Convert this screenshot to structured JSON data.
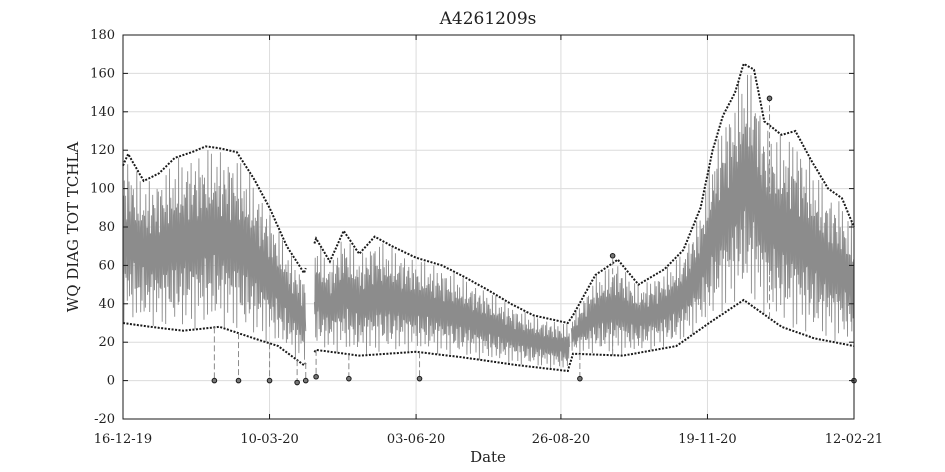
{
  "chart_data": {
    "type": "line",
    "title": "A4261209s",
    "xlabel": "Date",
    "ylabel": "WQ DIAG TOT TCHLA",
    "x_tick_labels": [
      "16-12-19",
      "10-03-20",
      "03-06-20",
      "26-08-20",
      "19-11-20",
      "12-02-21"
    ],
    "x_ticks": [
      "2019-12-16",
      "2020-03-10",
      "2020-06-03",
      "2020-08-26",
      "2020-11-19",
      "2021-02-12"
    ],
    "xlim": [
      "2019-12-16",
      "2021-02-12"
    ],
    "y_ticks": [
      -20,
      0,
      20,
      40,
      60,
      80,
      100,
      120,
      140,
      160,
      180
    ],
    "ylim": [
      -20,
      180
    ],
    "grid": true,
    "legend": "none",
    "line_color": "#8c8c8c",
    "marker_color": "#1a1a1a",
    "gap_ranges": [
      [
        "2020-03-31",
        "2020-04-05"
      ],
      [
        "2020-08-31",
        "2020-09-01"
      ]
    ],
    "series": [
      {
        "envelope_upper": [
          {
            "x": "2019-12-16",
            "y": 112
          },
          {
            "x": "2019-12-19",
            "y": 118
          },
          {
            "x": "2019-12-28",
            "y": 104
          },
          {
            "x": "2020-01-06",
            "y": 108
          },
          {
            "x": "2020-01-15",
            "y": 116
          },
          {
            "x": "2020-01-25",
            "y": 119
          },
          {
            "x": "2020-02-02",
            "y": 122
          },
          {
            "x": "2020-02-10",
            "y": 121
          },
          {
            "x": "2020-02-20",
            "y": 119
          },
          {
            "x": "2020-03-01",
            "y": 105
          },
          {
            "x": "2020-03-10",
            "y": 90
          },
          {
            "x": "2020-03-20",
            "y": 70
          },
          {
            "x": "2020-03-30",
            "y": 56
          },
          {
            "x": "2020-04-06",
            "y": 74
          },
          {
            "x": "2020-04-14",
            "y": 62
          },
          {
            "x": "2020-04-22",
            "y": 78
          },
          {
            "x": "2020-05-01",
            "y": 66
          },
          {
            "x": "2020-05-10",
            "y": 75
          },
          {
            "x": "2020-05-20",
            "y": 70
          },
          {
            "x": "2020-06-03",
            "y": 64
          },
          {
            "x": "2020-06-18",
            "y": 60
          },
          {
            "x": "2020-07-01",
            "y": 54
          },
          {
            "x": "2020-07-15",
            "y": 47
          },
          {
            "x": "2020-07-28",
            "y": 40
          },
          {
            "x": "2020-08-10",
            "y": 34
          },
          {
            "x": "2020-08-30",
            "y": 30
          },
          {
            "x": "2020-09-02",
            "y": 34
          },
          {
            "x": "2020-09-15",
            "y": 55
          },
          {
            "x": "2020-09-28",
            "y": 63
          },
          {
            "x": "2020-10-10",
            "y": 50
          },
          {
            "x": "2020-10-25",
            "y": 58
          },
          {
            "x": "2020-11-05",
            "y": 68
          },
          {
            "x": "2020-11-15",
            "y": 90
          },
          {
            "x": "2020-11-22",
            "y": 120
          },
          {
            "x": "2020-11-28",
            "y": 138
          },
          {
            "x": "2020-12-05",
            "y": 150
          },
          {
            "x": "2020-12-10",
            "y": 165
          },
          {
            "x": "2020-12-16",
            "y": 162
          },
          {
            "x": "2020-12-22",
            "y": 135
          },
          {
            "x": "2021-01-01",
            "y": 128
          },
          {
            "x": "2021-01-09",
            "y": 130
          },
          {
            "x": "2021-01-18",
            "y": 115
          },
          {
            "x": "2021-01-28",
            "y": 100
          },
          {
            "x": "2021-02-05",
            "y": 95
          },
          {
            "x": "2021-02-12",
            "y": 80
          }
        ],
        "envelope_lower": [
          {
            "x": "2019-12-16",
            "y": 30
          },
          {
            "x": "2020-01-01",
            "y": 28
          },
          {
            "x": "2020-01-20",
            "y": 26
          },
          {
            "x": "2020-02-10",
            "y": 28
          },
          {
            "x": "2020-03-01",
            "y": 22
          },
          {
            "x": "2020-03-15",
            "y": 18
          },
          {
            "x": "2020-03-30",
            "y": 8
          },
          {
            "x": "2020-04-06",
            "y": 16
          },
          {
            "x": "2020-05-01",
            "y": 13
          },
          {
            "x": "2020-06-03",
            "y": 15
          },
          {
            "x": "2020-07-01",
            "y": 12
          },
          {
            "x": "2020-08-01",
            "y": 8
          },
          {
            "x": "2020-08-30",
            "y": 5
          },
          {
            "x": "2020-09-02",
            "y": 14
          },
          {
            "x": "2020-10-01",
            "y": 13
          },
          {
            "x": "2020-11-01",
            "y": 18
          },
          {
            "x": "2020-11-20",
            "y": 30
          },
          {
            "x": "2020-12-10",
            "y": 42
          },
          {
            "x": "2021-01-01",
            "y": 28
          },
          {
            "x": "2021-01-20",
            "y": 22
          },
          {
            "x": "2021-02-12",
            "y": 18
          }
        ],
        "highlighted_points": [
          {
            "x": "2020-02-07",
            "y": 0
          },
          {
            "x": "2020-02-21",
            "y": 0
          },
          {
            "x": "2020-03-10",
            "y": 0
          },
          {
            "x": "2020-03-26",
            "y": -1
          },
          {
            "x": "2020-03-31",
            "y": 0
          },
          {
            "x": "2020-04-06",
            "y": 2
          },
          {
            "x": "2020-04-25",
            "y": 1
          },
          {
            "x": "2020-06-05",
            "y": 1
          },
          {
            "x": "2020-09-06",
            "y": 1
          },
          {
            "x": "2020-09-25",
            "y": 65
          },
          {
            "x": "2020-12-25",
            "y": 147
          },
          {
            "x": "2021-02-12",
            "y": 0
          }
        ]
      }
    ]
  }
}
